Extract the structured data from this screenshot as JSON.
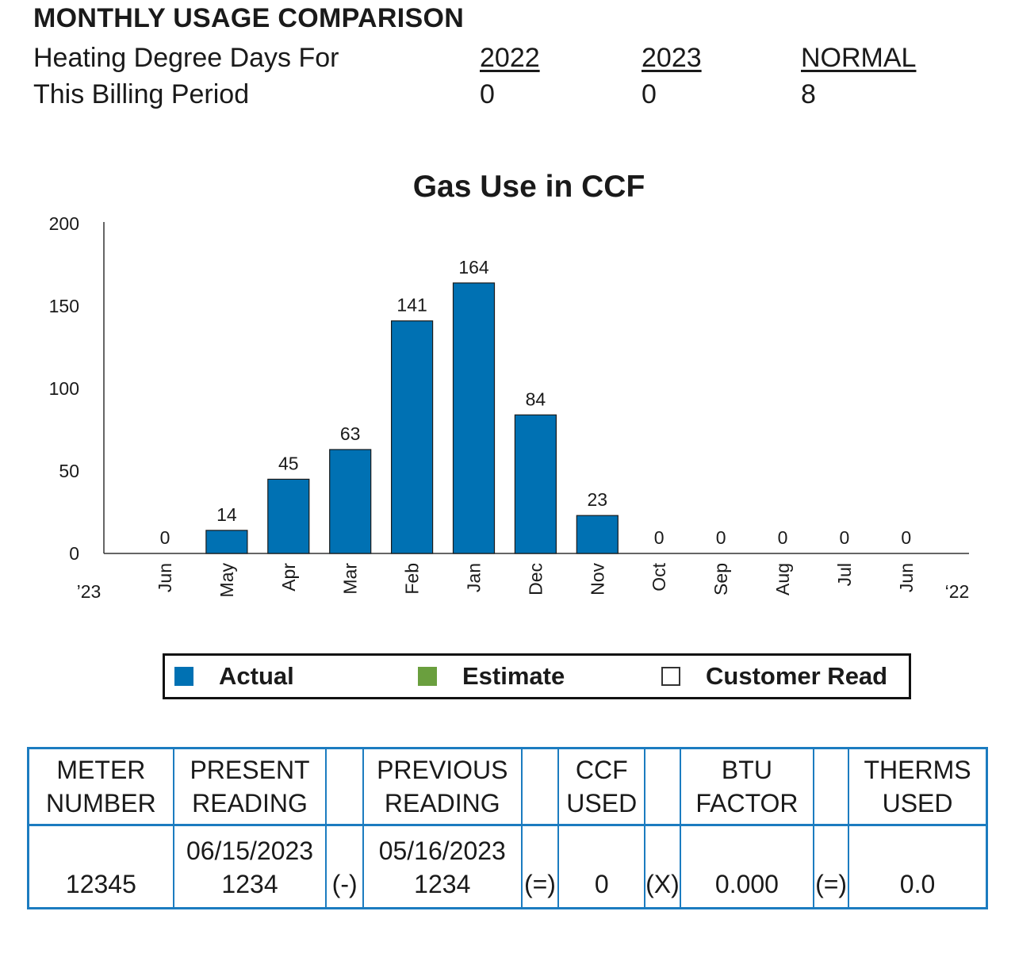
{
  "header": {
    "title": "MONTHLY USAGE COMPARISON",
    "hdd_label_line1": "Heating Degree Days For",
    "hdd_label_line2": "This Billing Period",
    "columns": [
      {
        "heading": "2022",
        "value": "0"
      },
      {
        "heading": "2023",
        "value": "0"
      },
      {
        "heading": "NORMAL",
        "value": "8"
      }
    ]
  },
  "chart_data": {
    "type": "bar",
    "title": "Gas Use in CCF",
    "categories": [
      "Jun",
      "May",
      "Apr",
      "Mar",
      "Feb",
      "Jan",
      "Dec",
      "Nov",
      "Oct",
      "Sep",
      "Aug",
      "Jul",
      "Jun"
    ],
    "values": [
      0,
      14,
      45,
      63,
      141,
      164,
      84,
      23,
      0,
      0,
      0,
      0,
      0
    ],
    "yticks": [
      "0",
      "50",
      "100",
      "150",
      "200"
    ],
    "ylim": [
      0,
      200
    ],
    "x_start_label": "’23",
    "x_end_label": "‘22",
    "bar_color": "#0071b3",
    "grid": false
  },
  "legend": {
    "items": [
      {
        "label": "Actual",
        "color": "#0071b3"
      },
      {
        "label": "Estimate",
        "color": "#6a9f3e"
      },
      {
        "label": "Customer Read",
        "color": "#ffffff"
      }
    ]
  },
  "meter_table": {
    "headers": {
      "meter_number": [
        "METER",
        "NUMBER"
      ],
      "present_reading": [
        "PRESENT",
        "READING"
      ],
      "previous_reading": [
        "PREVIOUS",
        "READING"
      ],
      "ccf_used": [
        "CCF",
        "USED"
      ],
      "btu_factor": [
        "BTU",
        "FACTOR"
      ],
      "therms_used": [
        "THERMS",
        "USED"
      ]
    },
    "row": {
      "meter_number": "12345",
      "present_date": "06/15/2023",
      "present_reading": "1234",
      "op_minus": "(-)",
      "previous_date": "05/16/2023",
      "previous_reading": "1234",
      "op_equals_1": "(=)",
      "ccf_used": "0",
      "op_times": "(X)",
      "btu_factor": "0.000",
      "op_equals_2": "(=)",
      "therms_used": "0.0"
    }
  }
}
